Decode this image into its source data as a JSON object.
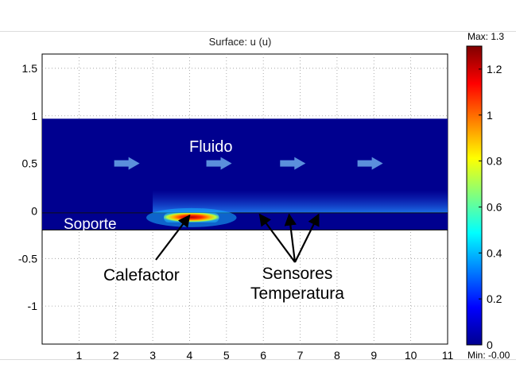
{
  "chart_data": {
    "type": "heatmap",
    "title": "Surface: u (u)",
    "xlabel": "",
    "ylabel": "",
    "xlim": [
      0,
      11
    ],
    "ylim": [
      -1.4,
      1.65
    ],
    "x_ticks": [
      1,
      2,
      3,
      4,
      5,
      6,
      7,
      8,
      9,
      10,
      11
    ],
    "y_ticks": [
      -1,
      -0.5,
      0,
      0.5,
      1,
      1.5
    ],
    "y_tick_labels": [
      "-1",
      "-0.5",
      "0",
      "0.5",
      "1",
      "1.5"
    ],
    "grid": true,
    "colorbar": {
      "max_label": "Max: 1.3",
      "min_label": "Min: -0.00",
      "range": [
        0,
        1.3
      ],
      "ticks": [
        0,
        0.2,
        0.4,
        0.6,
        0.8,
        1,
        1.2
      ],
      "tick_labels": [
        "0",
        "0.2",
        "0.4",
        "0.6",
        "0.8",
        "1",
        "1.2"
      ],
      "colormap": "jet"
    },
    "regions": [
      {
        "name": "fluid",
        "x": [
          0,
          11
        ],
        "y": [
          -0.02,
          0.97
        ],
        "value": 0.0
      },
      {
        "name": "support",
        "x": [
          0,
          11
        ],
        "y": [
          -0.2,
          -0.02
        ],
        "value": 0.0
      }
    ],
    "hot_spot": {
      "x_center": 4.0,
      "x_range": [
        3.3,
        4.8
      ],
      "y_range": [
        -0.12,
        -0.02
      ],
      "peak_value": 1.3
    },
    "wake": {
      "x_start": 3.0,
      "x_end": 11.0,
      "value": 0.25
    },
    "flow_arrows_x": [
      2.3,
      4.8,
      6.8,
      8.9
    ],
    "flow_arrows_y": 0.5,
    "annotations": {
      "fluid": "Fluido",
      "support": "Soporte",
      "heater": "Calefactor",
      "sensors": [
        "Sensores",
        "Temperatura"
      ]
    },
    "heater_pointer": {
      "label_xy": [
        3.4,
        -0.55
      ],
      "tip_xy": [
        4.0,
        -0.03
      ]
    },
    "sensor_pointers": {
      "label_xy": [
        7.0,
        -0.52
      ],
      "tips": [
        [
          5.9,
          -0.02
        ],
        [
          6.7,
          -0.02
        ],
        [
          7.5,
          -0.02
        ]
      ]
    }
  }
}
